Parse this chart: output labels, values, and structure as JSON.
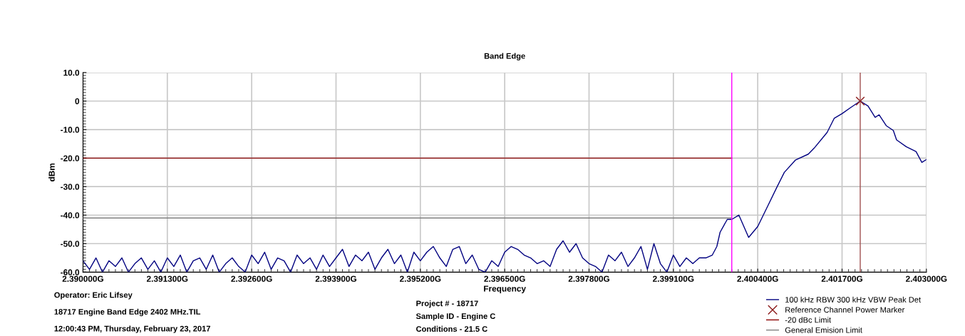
{
  "chart_data": {
    "type": "line",
    "title": "Band Edge",
    "xlabel": "Frequency",
    "ylabel": "dBm",
    "xlim": [
      2.39,
      2.403
    ],
    "ylim": [
      -60,
      10
    ],
    "xticks": [
      {
        "value": 2.39,
        "label": "2.390000G"
      },
      {
        "value": 2.3913,
        "label": "2.391300G"
      },
      {
        "value": 2.3926,
        "label": "2.392600G"
      },
      {
        "value": 2.3939,
        "label": "2.393900G"
      },
      {
        "value": 2.3952,
        "label": "2.395200G"
      },
      {
        "value": 2.3965,
        "label": "2.396500G"
      },
      {
        "value": 2.3978,
        "label": "2.397800G"
      },
      {
        "value": 2.3991,
        "label": "2.399100G"
      },
      {
        "value": 2.4004,
        "label": "2.400400G"
      },
      {
        "value": 2.4017,
        "label": "2.401700G"
      },
      {
        "value": 2.403,
        "label": "2.403000G"
      }
    ],
    "yticks": [
      {
        "value": 10,
        "label": "10.0"
      },
      0,
      {
        "value": -10,
        "label": "-10.0"
      },
      {
        "value": -20,
        "label": "-20.0"
      },
      {
        "value": -30,
        "label": "-30.0"
      },
      {
        "value": -40,
        "label": "-40.0"
      },
      {
        "value": -50,
        "label": "-50.0"
      },
      {
        "value": -60,
        "label": "-60.0"
      }
    ],
    "grid": true,
    "legend": "bottom right",
    "series": [
      {
        "name": "100 kHz RBW 300 kHz VBW Peak Det",
        "color": "#000080",
        "x": [
          2.39,
          2.3901,
          2.3902,
          2.3903,
          2.3904,
          2.3905,
          2.3906,
          2.3907,
          2.3908,
          2.3909,
          2.391,
          2.3911,
          2.3912,
          2.3913,
          2.3914,
          2.3915,
          2.3916,
          2.3917,
          2.3918,
          2.3919,
          2.392,
          2.3921,
          2.3922,
          2.3923,
          2.3924,
          2.3925,
          2.3926,
          2.3927,
          2.3928,
          2.3929,
          2.393,
          2.3931,
          2.3932,
          2.3933,
          2.3934,
          2.3935,
          2.3936,
          2.3937,
          2.3938,
          2.3939,
          2.394,
          2.3941,
          2.3942,
          2.3943,
          2.3944,
          2.3945,
          2.3946,
          2.3947,
          2.3948,
          2.3949,
          2.395,
          2.3951,
          2.3952,
          2.3953,
          2.3954,
          2.3955,
          2.3956,
          2.3957,
          2.3958,
          2.3959,
          2.396,
          2.3961,
          2.3962,
          2.3963,
          2.3964,
          2.3965,
          2.3966,
          2.3967,
          2.3968,
          2.3969,
          2.397,
          2.3971,
          2.3972,
          2.3973,
          2.3974,
          2.3975,
          2.3976,
          2.3977,
          2.3978,
          2.3979,
          2.398,
          2.3981,
          2.3982,
          2.3983,
          2.3984,
          2.3985,
          2.3986,
          2.3987,
          2.3988,
          2.3989,
          2.399,
          2.3991,
          2.3992,
          2.3993,
          2.3994,
          2.3995,
          2.3996,
          2.3997,
          2.39977,
          2.39982,
          2.39993,
          2.4,
          2.40011,
          2.40026,
          2.4004,
          2.40055,
          2.4007,
          2.40081,
          2.40098,
          2.40118,
          2.40127,
          2.40147,
          2.40158,
          2.4017,
          2.40183,
          2.40198,
          2.4021,
          2.40221,
          2.40227,
          2.40238,
          2.40249,
          2.40254,
          2.40269,
          2.40284,
          2.40293,
          2.403
        ],
        "values": [
          -56,
          -59,
          -55,
          -60,
          -56,
          -58,
          -55,
          -60,
          -57,
          -55,
          -59,
          -56,
          -60,
          -55,
          -58,
          -54,
          -60,
          -56,
          -55,
          -59,
          -54,
          -60,
          -57,
          -55,
          -58,
          -60,
          -54,
          -57,
          -53,
          -59,
          -55,
          -56,
          -60,
          -54,
          -57,
          -55,
          -59,
          -54,
          -58,
          -55,
          -52,
          -58,
          -54,
          -56,
          -53,
          -59,
          -55,
          -52,
          -57,
          -54,
          -60,
          -53,
          -56,
          -53,
          -51,
          -55,
          -58,
          -52,
          -51,
          -57,
          -54,
          -59,
          -60,
          -56,
          -58,
          -53,
          -51,
          -52,
          -54,
          -55,
          -57,
          -56,
          -58,
          -52,
          -49,
          -53,
          -50,
          -55,
          -57,
          -58,
          -60,
          -54,
          -56,
          -53,
          -58,
          -55,
          -51,
          -59,
          -50,
          -57,
          -60,
          -54,
          -58,
          -55,
          -57,
          -55,
          -55,
          -54,
          -51,
          -46,
          -41.5,
          -41.5,
          -40,
          -47.8,
          -44,
          -37,
          -30,
          -25,
          -20.7,
          -18.6,
          -16.5,
          -11,
          -6,
          -4.4,
          -2.3,
          0,
          -1.7,
          -5.7,
          -4.8,
          -8.6,
          -10.3,
          -13.6,
          -16,
          -17.7,
          -21.5,
          -20.5
        ]
      },
      {
        "name": "Reference Channel Power Marker",
        "color": "#8b1a1a",
        "type": "scatter",
        "marker": "cross",
        "x": [
          2.40198
        ],
        "values": [
          0
        ]
      },
      {
        "name": "-20 dBc Limit",
        "color": "#8b0000",
        "x": [
          2.39,
          2.4
        ],
        "values": [
          -20,
          -20
        ]
      },
      {
        "name": "General Emision Limit",
        "color": "#808080",
        "x": [
          2.39,
          2.4
        ],
        "values": [
          -41,
          -41
        ]
      }
    ],
    "ref_lines": [
      {
        "axis": "x",
        "value": 2.4,
        "color": "#ff00ff"
      },
      {
        "axis": "x",
        "value": 2.40198,
        "color": "#a05050"
      }
    ],
    "annotations": [
      "Operator: Eric Lifsey",
      "18717 Engine Band Edge 2402 MHz.TIL",
      "12:00:43 PM, Thursday, February 23, 2017",
      "Project # - 18717",
      "Sample ID - Engine C",
      "Conditions - 21.5 C"
    ]
  }
}
